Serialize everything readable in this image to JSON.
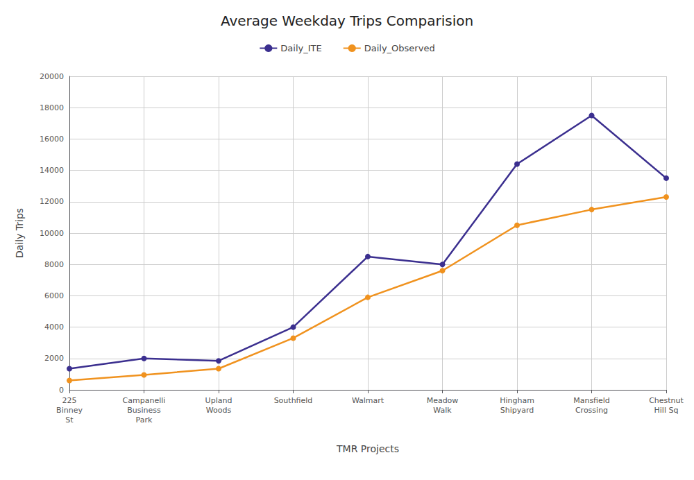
{
  "chart_data": {
    "type": "line",
    "title": "Average Weekday Trips Comparision",
    "xlabel": "TMR Projects",
    "ylabel": "Daily Trips",
    "categories": [
      "225\nBinney\nSt",
      "Campanelli\nBusiness\nPark",
      "Upland\nWoods",
      "Southfield",
      "Walmart",
      "Meadow\nWalk",
      "Hingham\nShipyard",
      "Mansfield\nCrossing",
      "Chestnut\nHill Sq"
    ],
    "series": [
      {
        "name": "Daily_ITE",
        "color": "#3b2f8f",
        "values": [
          1350,
          2000,
          1850,
          4000,
          8500,
          8000,
          14400,
          17500,
          13500
        ]
      },
      {
        "name": "Daily_Observed",
        "color": "#f0921e",
        "values": [
          600,
          950,
          1350,
          3300,
          5900,
          7600,
          10500,
          11500,
          12300
        ]
      }
    ],
    "marker": "circle",
    "ylim": [
      0,
      20000
    ],
    "yticks": [
      0,
      2000,
      4000,
      6000,
      8000,
      10000,
      12000,
      14000,
      16000,
      18000,
      20000
    ],
    "grid": true,
    "legend": "top"
  }
}
